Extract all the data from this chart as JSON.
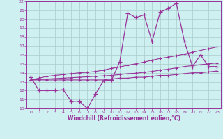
{
  "xlabel": "Windchill (Refroidissement éolien,°C)",
  "bg_color": "#cff0f0",
  "line_color": "#993399",
  "grid_color": "#aacccc",
  "x_hours": [
    0,
    1,
    2,
    3,
    4,
    5,
    6,
    7,
    8,
    9,
    10,
    11,
    12,
    13,
    14,
    15,
    16,
    17,
    18,
    19,
    20,
    21,
    22,
    23
  ],
  "y_main": [
    13.5,
    12.0,
    12.0,
    12.0,
    12.1,
    10.8,
    10.8,
    10.0,
    11.6,
    13.1,
    13.2,
    15.2,
    20.7,
    20.2,
    20.5,
    17.5,
    20.8,
    21.2,
    21.8,
    17.5,
    14.7,
    16.0,
    14.7,
    14.7
  ],
  "y_line1": [
    13.2,
    13.2,
    13.2,
    13.2,
    13.2,
    13.2,
    13.2,
    13.2,
    13.2,
    13.2,
    13.3,
    13.4,
    13.4,
    13.5,
    13.5,
    13.6,
    13.7,
    13.7,
    13.8,
    13.9,
    14.0,
    14.0,
    14.1,
    14.2
  ],
  "y_line2": [
    13.2,
    13.25,
    13.3,
    13.35,
    13.4,
    13.45,
    13.5,
    13.55,
    13.6,
    13.65,
    13.7,
    13.8,
    13.9,
    13.95,
    14.05,
    14.15,
    14.3,
    14.4,
    14.55,
    14.7,
    14.8,
    14.9,
    15.0,
    15.1
  ],
  "y_line3": [
    13.2,
    13.4,
    13.6,
    13.7,
    13.8,
    13.9,
    14.0,
    14.05,
    14.15,
    14.3,
    14.5,
    14.65,
    14.85,
    15.0,
    15.2,
    15.4,
    15.6,
    15.75,
    15.9,
    16.1,
    16.3,
    16.5,
    16.7,
    16.9
  ],
  "ylim": [
    10,
    22
  ],
  "xlim": [
    -0.5,
    23.5
  ],
  "yticks": [
    10,
    11,
    12,
    13,
    14,
    15,
    16,
    17,
    18,
    19,
    20,
    21,
    22
  ],
  "xticks": [
    0,
    1,
    2,
    3,
    4,
    5,
    6,
    7,
    8,
    9,
    10,
    11,
    12,
    13,
    14,
    15,
    16,
    17,
    18,
    19,
    20,
    21,
    22,
    23
  ]
}
